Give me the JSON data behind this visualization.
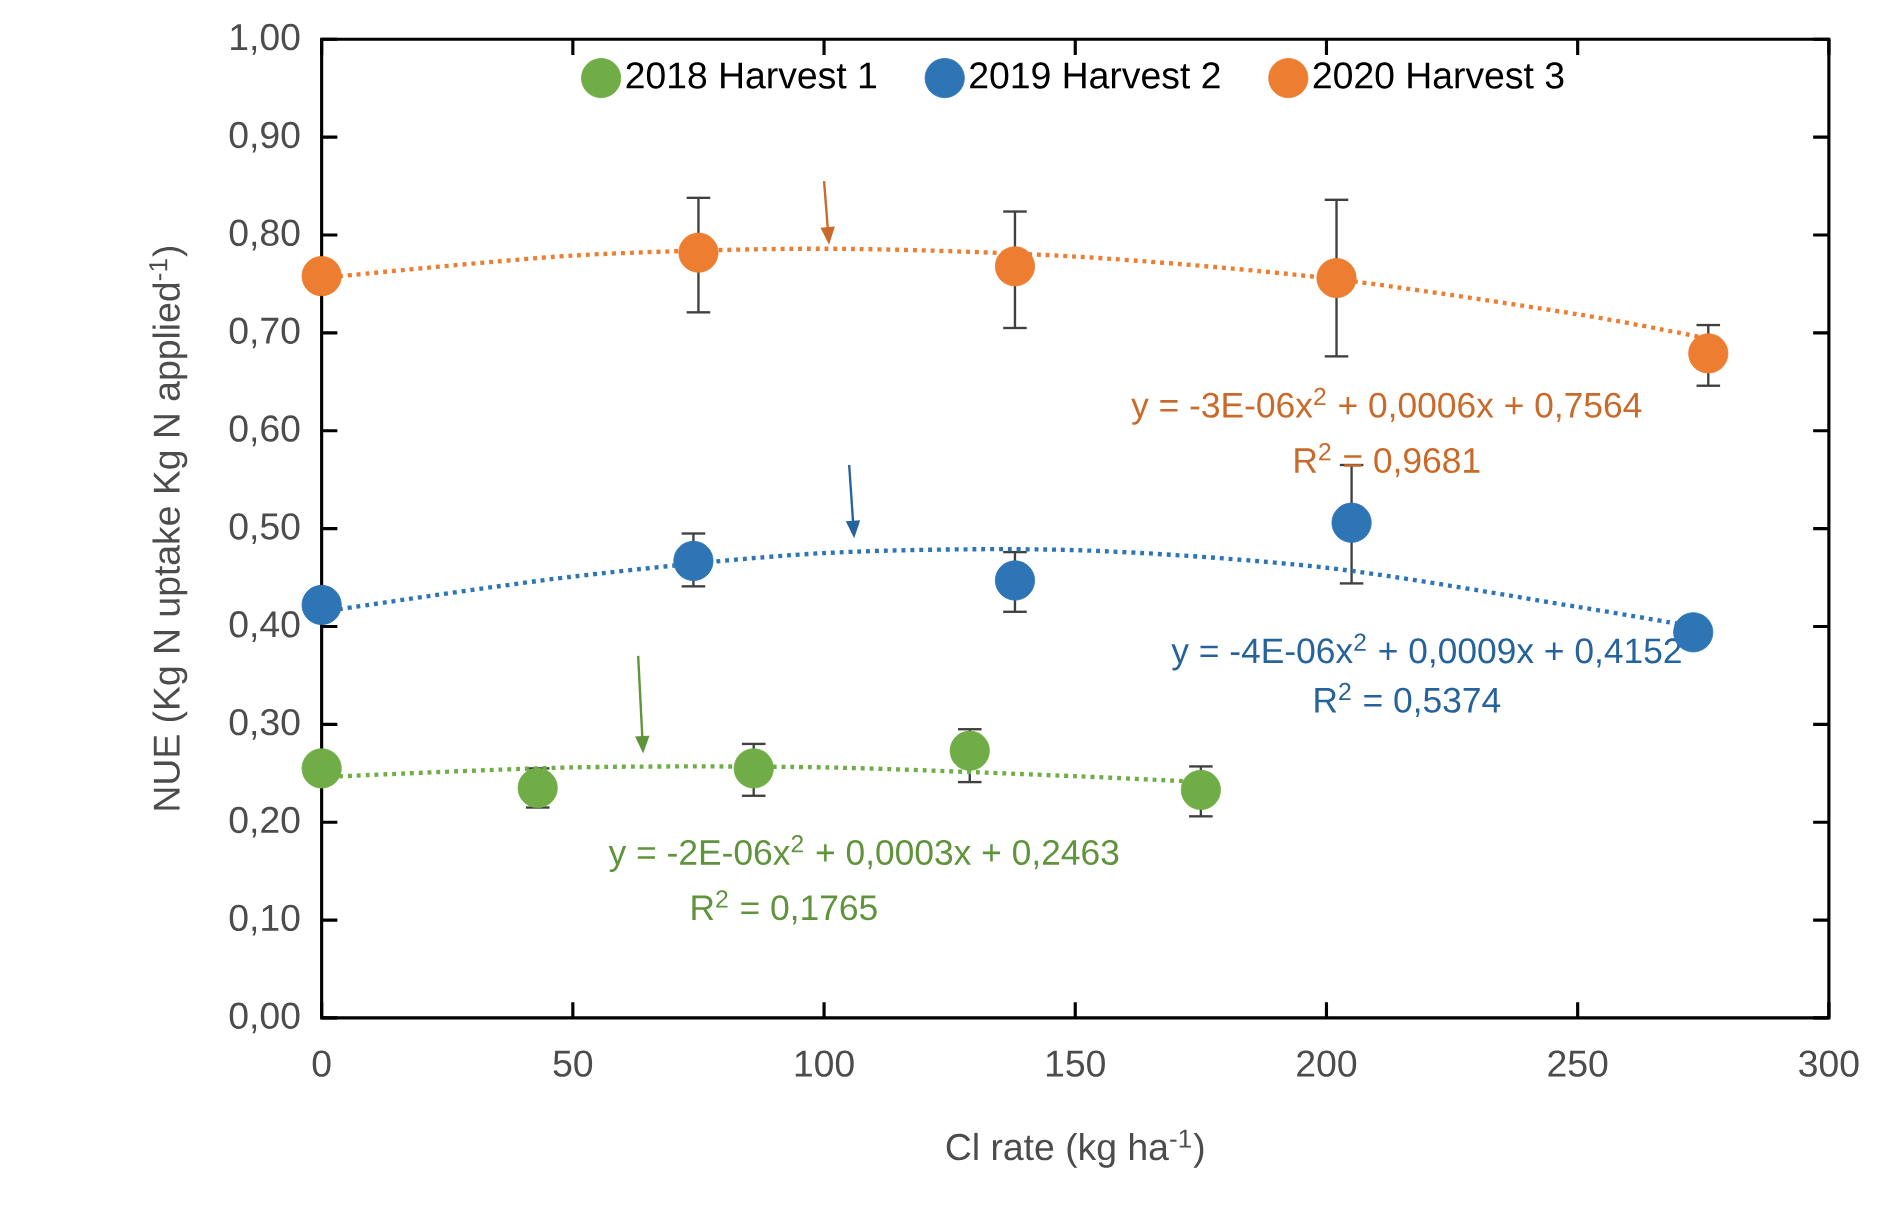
{
  "chart_data": {
    "type": "scatter",
    "xlabel": "Cl  rate (kg ha$^{-1}$)",
    "ylabel": "NUE (Kg N uptake Kg N applied$^{-1}$)",
    "xlim": [
      0,
      300
    ],
    "xticks": [
      0,
      50,
      100,
      150,
      200,
      250,
      300
    ],
    "ylim": [
      0,
      1
    ],
    "yticks": [
      {
        "value": 0,
        "label": "0,00"
      },
      {
        "value": 0.1,
        "label": "0,10"
      },
      {
        "value": 0.2,
        "label": "0,20"
      },
      {
        "value": 0.3,
        "label": "0,30"
      },
      {
        "value": 0.4,
        "label": "0,40"
      },
      {
        "value": 0.5,
        "label": "0,50"
      },
      {
        "value": 0.6,
        "label": "0,60"
      },
      {
        "value": 0.7,
        "label": "0,70"
      },
      {
        "value": 0.8,
        "label": "0,80"
      },
      {
        "value": 0.9,
        "label": "0,90"
      },
      {
        "value": 1,
        "label": "1,00"
      }
    ],
    "legend": "top",
    "marker": "circle",
    "grid": false,
    "series": [
      {
        "name": "2018 Harvest 1",
        "color": "#70ad47",
        "x": [
          0,
          43,
          86,
          129,
          175
        ],
        "values": [
          0.255,
          0.235,
          0.255,
          0.273,
          0.233
        ],
        "errors": [
          null,
          [
            0.215,
            0.255
          ],
          [
            0.227,
            0.28
          ],
          [
            0.241,
            0.295
          ],
          [
            0.206,
            0.257
          ]
        ]
      },
      {
        "name": "2019 Harvest 2",
        "color": "#2e75b6",
        "x": [
          0,
          74,
          138,
          205,
          273
        ],
        "values": [
          0.422,
          0.467,
          0.447,
          0.506,
          0.394
        ],
        "errors": [
          null,
          [
            0.441,
            0.495
          ],
          [
            0.415,
            0.476
          ],
          [
            0.444,
            0.565
          ],
          null
        ]
      },
      {
        "name": "2020 Harvest 3",
        "color": "#ed7d31",
        "x": [
          0,
          75,
          138,
          202,
          276
        ],
        "values": [
          0.758,
          0.782,
          0.768,
          0.756,
          0.679
        ],
        "errors": [
          null,
          [
            0.721,
            0.838
          ],
          [
            0.705,
            0.824
          ],
          [
            0.676,
            0.836
          ],
          [
            0.646,
            0.708
          ]
        ]
      },
      {
        "type": "line",
        "line_style": "dotted",
        "marker": "none",
        "color": "#70ad47",
        "x": [
          0,
          50,
          100,
          150,
          175
        ],
        "values": [
          0.246,
          0.256,
          0.256,
          0.247,
          0.241
        ]
      },
      {
        "type": "line",
        "line_style": "dotted",
        "marker": "none",
        "color": "#2e75b6",
        "x": [
          0,
          50,
          100,
          150,
          200,
          250,
          273
        ],
        "values": [
          0.415,
          0.451,
          0.475,
          0.478,
          0.46,
          0.42,
          0.4
        ]
      },
      {
        "type": "line",
        "line_style": "dotted",
        "marker": "none",
        "color": "#ed7d31",
        "x": [
          0,
          50,
          100,
          150,
          200,
          250,
          276
        ],
        "values": [
          0.756,
          0.779,
          0.786,
          0.778,
          0.756,
          0.719,
          0.694
        ]
      }
    ],
    "annotations": [
      "y = -2E-06x$^{2}$ + 0,0003x + 0,2463",
      "R$^{2}$ = 0,1765",
      "y = -4E-06x$^{2}$ + 0,0009x + 0,4152",
      "R$^{2}$ = 0,5374",
      "y = -3E-06x$^{2}$ + 0,0006x + 0,7564",
      "R$^{2}$ = 0,9681"
    ]
  }
}
